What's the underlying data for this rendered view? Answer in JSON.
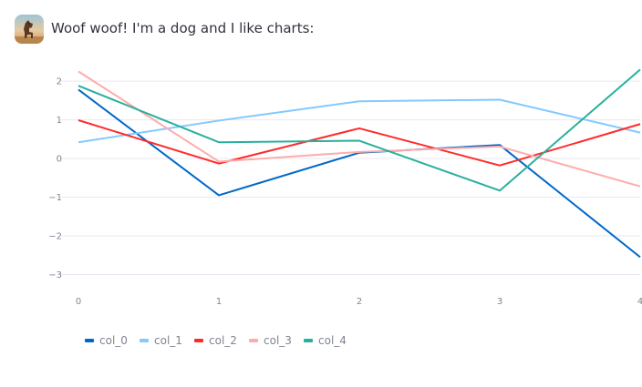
{
  "message": {
    "avatar_icon": "dog-photo-avatar",
    "text": "Woof woof! I'm a dog and I like charts:"
  },
  "chart_data": {
    "type": "line",
    "x": [
      0,
      1,
      2,
      3,
      4
    ],
    "ylim": [
      -3.2,
      2.45
    ],
    "xlim": [
      0,
      4
    ],
    "y_ticks": [
      -3,
      -2,
      -1,
      0,
      1,
      2
    ],
    "x_ticks": [
      0,
      1,
      2,
      3,
      4
    ],
    "grid": "horizontal",
    "legend_position": "bottom-left",
    "series": [
      {
        "name": "col_0",
        "color": "#0068c9",
        "values": [
          1.78,
          -0.95,
          0.15,
          0.35,
          -2.55
        ]
      },
      {
        "name": "col_1",
        "color": "#83c9ff",
        "values": [
          0.42,
          0.98,
          1.48,
          1.52,
          0.67
        ]
      },
      {
        "name": "col_2",
        "color": "#ff2b2b",
        "values": [
          0.99,
          -0.13,
          0.78,
          -0.18,
          0.89
        ]
      },
      {
        "name": "col_3",
        "color": "#ffabab",
        "values": [
          2.25,
          -0.08,
          0.17,
          0.31,
          -0.72
        ]
      },
      {
        "name": "col_4",
        "color": "#29b09d",
        "values": [
          1.88,
          0.42,
          0.46,
          -0.83,
          2.3
        ]
      }
    ]
  }
}
